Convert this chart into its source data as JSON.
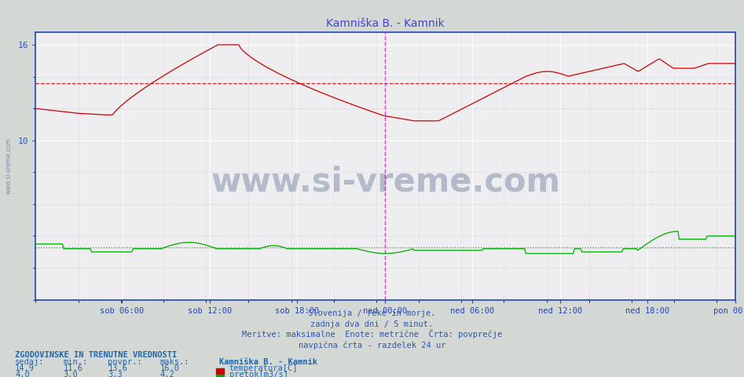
{
  "title": "Kamniška B. - Kamnik",
  "title_color": "#4444cc",
  "bg_color": "#d4d8d4",
  "plot_bg_color": "#eeeef0",
  "grid_color": "#ffffff",
  "grid_minor_color": "#e0dce0",
  "tick_label_color": "#3355aa",
  "temp_color": "#cc0000",
  "flow_color": "#00aa00",
  "avg_temp_color": "#cc0000",
  "avg_flow_color": "#008800",
  "vline_color": "#cc44cc",
  "axis_color": "#2244bb",
  "temp_avg": 13.6,
  "flow_avg": 3.3,
  "temp_min": 11.6,
  "temp_max": 16.0,
  "flow_min": 3.0,
  "flow_max": 4.2,
  "temp_current": 14.9,
  "flow_current": 4.0,
  "ymin": 0.0,
  "ymax": 16.8,
  "ytick_labels": [
    "16",
    "10"
  ],
  "ytick_vals": [
    16,
    10
  ],
  "n_points": 576,
  "subtitle1": "Slovenija / reke in morje.",
  "subtitle2": "zadnja dva dni / 5 minut.",
  "subtitle3": "Meritve: maksimalne  Enote: metrične  Črta: povprečje",
  "subtitle4": "navpična črta - razdelek 24 ur",
  "legend_title": "Kamniška B. - Kamnik",
  "legend_temp": "temperatura[C]",
  "legend_flow": "pretok[m3/s]",
  "bottom_header": "ZGODOVINSKE IN TRENUTNE VREDNOSTI",
  "col_headers": [
    "sedaj:",
    "min.:",
    "povpr.:",
    "maks.:"
  ],
  "tick_labels": [
    "sob 06:00",
    "sob 12:00",
    "sob 18:00",
    "ned 00:00",
    "ned 06:00",
    "ned 12:00",
    "ned 18:00",
    "pon 00:00"
  ],
  "tick_fractions": [
    0.125,
    0.25,
    0.375,
    0.5,
    0.625,
    0.75,
    0.875,
    1.0
  ],
  "watermark": "www.si-vreme.com"
}
